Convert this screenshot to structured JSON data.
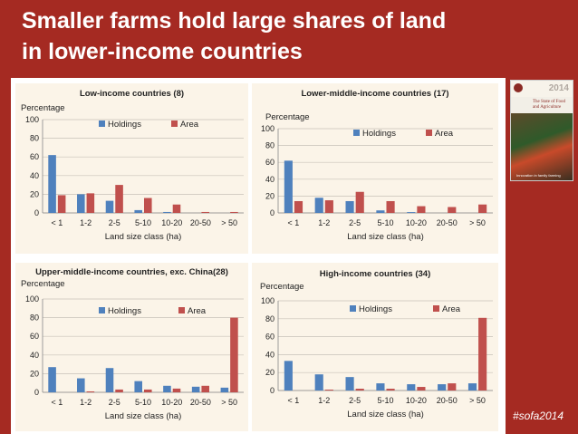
{
  "slide": {
    "title_line1": "Smaller farms hold large shares of land",
    "title_line2": "in lower-income countries",
    "hashtag": "#sofa2014"
  },
  "cover": {
    "year": "2014",
    "subtitle": "The State of Food and Agriculture",
    "caption": "Innovation in family farming"
  },
  "colors": {
    "holdings": "#4f81bd",
    "area": "#c0504d",
    "panel_bg": "#fbf4e8",
    "slide_bg": "#a52a22"
  },
  "chart_data": [
    {
      "type": "bar",
      "title": "Low-income countries (8)",
      "ylabel": "Percentage",
      "xlabel": "Land size class (ha)",
      "categories": [
        "< 1",
        "1-2",
        "2-5",
        "5-10",
        "10-20",
        "20-50",
        "> 50"
      ],
      "ylim": [
        0,
        100
      ],
      "yticks": [
        0,
        20,
        40,
        60,
        80,
        100
      ],
      "legend": "top-right",
      "series": [
        {
          "name": "Holdings",
          "color": "#4f81bd",
          "values": [
            62,
            20,
            13,
            3,
            1,
            0,
            0
          ]
        },
        {
          "name": "Area",
          "color": "#c0504d",
          "values": [
            19,
            21,
            30,
            16,
            9,
            1,
            1
          ]
        }
      ]
    },
    {
      "type": "bar",
      "title": "Lower-middle-income countries (17)",
      "ylabel": "Percentage",
      "xlabel": "Land size class (ha)",
      "categories": [
        "< 1",
        "1-2",
        "2-5",
        "5-10",
        "10-20",
        "20-50",
        "> 50"
      ],
      "ylim": [
        0,
        100
      ],
      "yticks": [
        0,
        20,
        40,
        60,
        80,
        100
      ],
      "legend": "top-right",
      "series": [
        {
          "name": "Holdings",
          "color": "#4f81bd",
          "values": [
            62,
            18,
            14,
            3,
            1,
            0,
            0
          ]
        },
        {
          "name": "Area",
          "color": "#c0504d",
          "values": [
            14,
            15,
            25,
            14,
            8,
            7,
            10
          ]
        }
      ]
    },
    {
      "type": "bar",
      "title": "Upper-middle-income countries, exc. China(28)",
      "ylabel": "Percentage",
      "xlabel": "Land size class (ha)",
      "categories": [
        "< 1",
        "1-2",
        "2-5",
        "5-10",
        "10-20",
        "20-50",
        "> 50"
      ],
      "ylim": [
        0,
        100
      ],
      "yticks": [
        0,
        20,
        40,
        60,
        80,
        100
      ],
      "legend": "top-right",
      "series": [
        {
          "name": "Holdings",
          "color": "#4f81bd",
          "values": [
            27,
            15,
            26,
            12,
            7,
            6,
            5
          ]
        },
        {
          "name": "Area",
          "color": "#c0504d",
          "values": [
            0,
            1,
            3,
            3,
            4,
            7,
            80
          ]
        }
      ]
    },
    {
      "type": "bar",
      "title": "High-income countries (34)",
      "ylabel": "Percentage",
      "xlabel": "Land size class (ha)",
      "categories": [
        "< 1",
        "1-2",
        "2-5",
        "5-10",
        "10-20",
        "20-50",
        "> 50"
      ],
      "ylim": [
        0,
        100
      ],
      "yticks": [
        0,
        20,
        40,
        60,
        80,
        100
      ],
      "legend": "top-right",
      "series": [
        {
          "name": "Holdings",
          "color": "#4f81bd",
          "values": [
            33,
            18,
            15,
            8,
            7,
            7,
            8
          ]
        },
        {
          "name": "Area",
          "color": "#c0504d",
          "values": [
            0,
            1,
            2,
            2,
            4,
            8,
            81
          ]
        }
      ]
    }
  ]
}
